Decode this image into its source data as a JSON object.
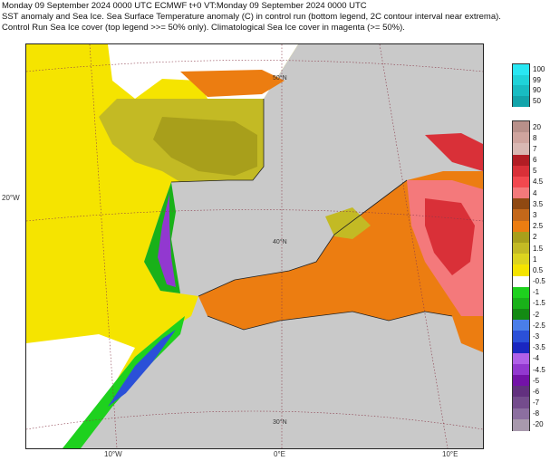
{
  "header": {
    "line1": "Monday 09 September 2024 0000 UTC  ECMWF  t+0  VT:Monday 09 September 2024 0000 UTC",
    "line2": "SST anomaly and Sea Ice. Sea Surface Temperature anomaly (C) in control run (bottom legend, 2C contour interval near extrema).",
    "line3": "Control Run Sea Ice cover (top legend >>= 50% only). Climatological Sea Ice cover in magenta (>= 50%)."
  },
  "map": {
    "land_color": "#c9c9c9",
    "graticule_labels": {
      "lat_50": "50°N",
      "lat_40": "40°N",
      "lat_30": "30°N",
      "lon_20w": "20°W",
      "lon_10w": "10°W",
      "lon_0e": "0°E",
      "lon_10e": "10°E"
    }
  },
  "ice_legend": {
    "labels": [
      "100",
      "99",
      "90",
      "50"
    ],
    "colors": [
      "#29e7f3",
      "#1fd3d9",
      "#18bcc2",
      "#12a4aa"
    ]
  },
  "sst_legend": {
    "labels": [
      "20",
      "8",
      "7",
      "6",
      "5",
      "4.5",
      "4",
      "3.5",
      "3",
      "2.5",
      "2",
      "1.5",
      "1",
      "0.5",
      "-0.5",
      "-1",
      "-1.5",
      "-2",
      "-2.5",
      "-3",
      "-3.5",
      "-4",
      "-4.5",
      "-5",
      "-6",
      "-7",
      "-8",
      "-20"
    ],
    "colors": [
      "#b8908a",
      "#cfa49e",
      "#d9b8b3",
      "#b21d24",
      "#d93038",
      "#f2484f",
      "#f4797b",
      "#8f4912",
      "#c4681a",
      "#ec7d11",
      "#a89f1b",
      "#c3ba24",
      "#dcd41f",
      "#f5e400",
      "#ffffff",
      "#1ed11e",
      "#19b119",
      "#138a13",
      "#4a7ee8",
      "#2b50d8",
      "#1a26c0",
      "#b060e8",
      "#9238d0",
      "#7312a8",
      "#62307f",
      "#744c8d",
      "#8c6fa0",
      "#a899ad"
    ]
  }
}
